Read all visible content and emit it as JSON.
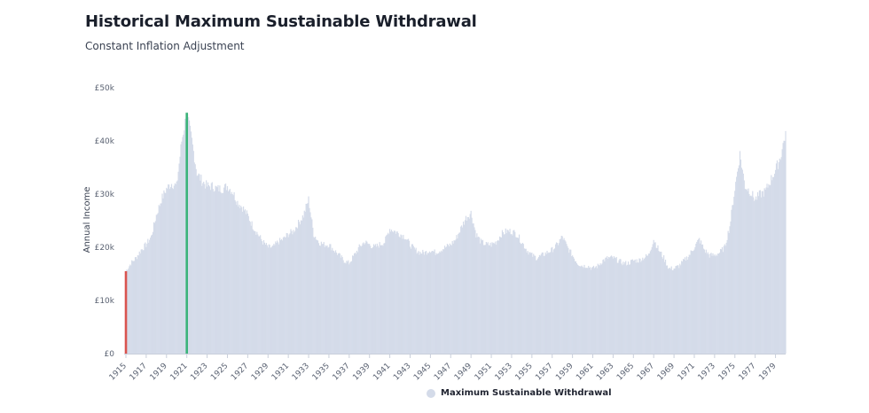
{
  "title": "Historical Maximum Sustainable Withdrawal",
  "subtitle": "Constant Inflation Adjustment",
  "chart_data": {
    "type": "bar",
    "ylabel": "Annual Income",
    "ylim": [
      0,
      50000
    ],
    "y_ticks": [
      {
        "value": 0,
        "label": "£0"
      },
      {
        "value": 10000,
        "label": "£10k"
      },
      {
        "value": 20000,
        "label": "£20k"
      },
      {
        "value": 30000,
        "label": "£30k"
      },
      {
        "value": 40000,
        "label": "£40k"
      },
      {
        "value": 50000,
        "label": "£50k"
      }
    ],
    "x_start_year": 1915,
    "x_end_year": 1980,
    "x_tick_labels": [
      "1915",
      "1917",
      "1919",
      "1921",
      "1923",
      "1925",
      "1927",
      "1929",
      "1931",
      "1933",
      "1935",
      "1937",
      "1939",
      "1941",
      "1943",
      "1945",
      "1947",
      "1949",
      "1951",
      "1953",
      "1955",
      "1957",
      "1959",
      "1961",
      "1963",
      "1965",
      "1967",
      "1969",
      "1971",
      "1973",
      "1975",
      "1977",
      "1979"
    ],
    "series": [
      {
        "name": "Maximum Sustainable Withdrawal",
        "color": "#d4dbe9",
        "points": [
          [
            1915.0,
            15500
          ],
          [
            1915.5,
            17000
          ],
          [
            1916.0,
            18000
          ],
          [
            1916.5,
            19500
          ],
          [
            1917.0,
            20500
          ],
          [
            1917.5,
            22000
          ],
          [
            1918.0,
            26000
          ],
          [
            1918.5,
            29000
          ],
          [
            1919.0,
            31000
          ],
          [
            1919.5,
            32000
          ],
          [
            1920.0,
            31500
          ],
          [
            1920.5,
            40000
          ],
          [
            1921.0,
            45300
          ],
          [
            1921.5,
            40000
          ],
          [
            1922.0,
            34000
          ],
          [
            1922.5,
            32500
          ],
          [
            1923.0,
            31500
          ],
          [
            1923.5,
            31500
          ],
          [
            1924.0,
            31000
          ],
          [
            1924.5,
            31000
          ],
          [
            1925.0,
            31500
          ],
          [
            1925.5,
            30500
          ],
          [
            1926.0,
            28500
          ],
          [
            1926.5,
            27500
          ],
          [
            1927.0,
            26000
          ],
          [
            1927.5,
            24000
          ],
          [
            1928.0,
            22500
          ],
          [
            1928.5,
            21000
          ],
          [
            1929.0,
            20000
          ],
          [
            1929.5,
            20000
          ],
          [
            1930.0,
            21000
          ],
          [
            1930.5,
            21500
          ],
          [
            1931.0,
            22500
          ],
          [
            1931.5,
            23000
          ],
          [
            1932.0,
            24500
          ],
          [
            1932.5,
            26000
          ],
          [
            1933.0,
            29000
          ],
          [
            1933.5,
            22500
          ],
          [
            1934.0,
            21000
          ],
          [
            1934.5,
            20500
          ],
          [
            1935.0,
            20500
          ],
          [
            1935.5,
            19500
          ],
          [
            1936.0,
            18500
          ],
          [
            1936.5,
            17500
          ],
          [
            1937.0,
            17000
          ],
          [
            1937.5,
            18500
          ],
          [
            1938.0,
            20000
          ],
          [
            1938.5,
            21000
          ],
          [
            1939.0,
            20500
          ],
          [
            1939.5,
            20000
          ],
          [
            1940.0,
            20500
          ],
          [
            1940.5,
            21000
          ],
          [
            1941.0,
            23500
          ],
          [
            1941.5,
            23000
          ],
          [
            1942.0,
            22500
          ],
          [
            1942.5,
            22000
          ],
          [
            1943.0,
            20500
          ],
          [
            1943.5,
            19500
          ],
          [
            1944.0,
            19000
          ],
          [
            1944.5,
            19000
          ],
          [
            1945.0,
            19500
          ],
          [
            1945.5,
            19000
          ],
          [
            1946.0,
            19500
          ],
          [
            1946.5,
            20000
          ],
          [
            1947.0,
            20500
          ],
          [
            1947.5,
            21500
          ],
          [
            1948.0,
            23500
          ],
          [
            1948.5,
            25500
          ],
          [
            1949.0,
            26500
          ],
          [
            1949.5,
            22500
          ],
          [
            1950.0,
            21000
          ],
          [
            1950.5,
            20500
          ],
          [
            1951.0,
            20500
          ],
          [
            1951.5,
            21000
          ],
          [
            1952.0,
            22500
          ],
          [
            1952.5,
            23000
          ],
          [
            1953.0,
            23000
          ],
          [
            1953.5,
            22500
          ],
          [
            1954.0,
            21000
          ],
          [
            1954.5,
            19500
          ],
          [
            1955.0,
            18500
          ],
          [
            1955.5,
            18000
          ],
          [
            1956.0,
            18500
          ],
          [
            1956.5,
            19000
          ],
          [
            1957.0,
            19500
          ],
          [
            1957.5,
            20500
          ],
          [
            1958.0,
            22000
          ],
          [
            1958.5,
            20000
          ],
          [
            1959.0,
            18500
          ],
          [
            1959.5,
            17000
          ],
          [
            1960.0,
            16500
          ],
          [
            1960.5,
            16500
          ],
          [
            1961.0,
            16000
          ],
          [
            1961.5,
            16500
          ],
          [
            1962.0,
            17500
          ],
          [
            1962.5,
            18000
          ],
          [
            1963.0,
            18000
          ],
          [
            1963.5,
            17500
          ],
          [
            1964.0,
            17000
          ],
          [
            1964.5,
            17000
          ],
          [
            1965.0,
            17500
          ],
          [
            1965.5,
            17500
          ],
          [
            1966.0,
            18000
          ],
          [
            1966.5,
            18500
          ],
          [
            1967.0,
            21500
          ],
          [
            1967.5,
            19500
          ],
          [
            1968.0,
            18000
          ],
          [
            1968.5,
            16000
          ],
          [
            1969.0,
            16000
          ],
          [
            1969.5,
            16500
          ],
          [
            1970.0,
            17500
          ],
          [
            1970.5,
            18500
          ],
          [
            1971.0,
            20000
          ],
          [
            1971.5,
            21500
          ],
          [
            1972.0,
            19500
          ],
          [
            1972.5,
            18500
          ],
          [
            1973.0,
            18500
          ],
          [
            1973.5,
            19000
          ],
          [
            1974.0,
            20000
          ],
          [
            1974.5,
            24000
          ],
          [
            1975.0,
            31000
          ],
          [
            1975.5,
            37500
          ],
          [
            1976.0,
            31500
          ],
          [
            1976.5,
            30500
          ],
          [
            1977.0,
            29000
          ],
          [
            1977.5,
            30000
          ],
          [
            1978.0,
            30500
          ],
          [
            1978.5,
            32500
          ],
          [
            1979.0,
            34500
          ],
          [
            1979.5,
            37000
          ],
          [
            1980.0,
            41500
          ]
        ]
      }
    ],
    "highlights": [
      {
        "label": "min",
        "x": 1915.0,
        "value": 15500,
        "color": "#d9534f"
      },
      {
        "label": "max",
        "x": 1921.0,
        "value": 45300,
        "color": "#3bb37a"
      }
    ],
    "legend_position": "bottom-center",
    "grid": false
  }
}
